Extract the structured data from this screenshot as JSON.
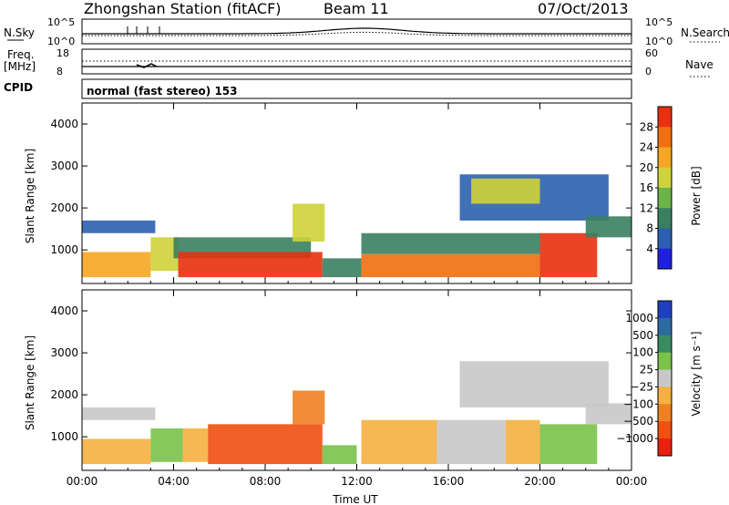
{
  "header": {
    "title": "Zhongshan Station (fitACF)",
    "beam": "Beam 11",
    "date": "07/Oct/2013"
  },
  "noise_panel": {
    "left_label": "N.Sky",
    "right_label": "N.Search",
    "left_ticks": [
      "10^5",
      "10^0"
    ],
    "right_ticks": [
      "10^5",
      "10^0"
    ]
  },
  "freq_panel": {
    "left_label_1": "Freq.",
    "left_label_2": "[MHz]",
    "right_label": "Nave",
    "left_ticks": [
      "18",
      "8"
    ],
    "right_ticks": [
      "60",
      "0"
    ]
  },
  "cpid": {
    "label": "CPID",
    "text": "normal (fast stereo) 153"
  },
  "colors": {
    "power_scale": [
      "#1f1fe0",
      "#2c5fb0",
      "#3a8060",
      "#6ab44a",
      "#cfd23a",
      "#f5a623",
      "#f07010",
      "#e83010"
    ],
    "velocity_scale": [
      "#e82010",
      "#f05010",
      "#f08020",
      "#f5b040",
      "#c8c8c8",
      "#7ac24a",
      "#3a8c60",
      "#2c6aa0",
      "#1f3fc0"
    ]
  },
  "chart_data": [
    {
      "type": "heatmap",
      "title": "Power",
      "ylabel": "Slant Range [km]",
      "xlabel": "",
      "ylim": [
        200,
        4500
      ],
      "xlim_hours": [
        0,
        24
      ],
      "yticks": [
        "1000",
        "2000",
        "3000",
        "4000"
      ],
      "xticks": [
        "00:00",
        "04:00",
        "08:00",
        "12:00",
        "16:00",
        "20:00",
        "00:00"
      ],
      "colorbar": {
        "label": "Power [dB]",
        "ticks": [
          "4",
          "8",
          "12",
          "16",
          "20",
          "24",
          "28"
        ],
        "range": [
          0,
          32
        ]
      },
      "regions": [
        {
          "t0": 0.0,
          "t1": 3.2,
          "r0": 1400,
          "r1": 1700,
          "value": 6
        },
        {
          "t0": 0.0,
          "t1": 3.0,
          "r0": 350,
          "r1": 950,
          "value": 20
        },
        {
          "t0": 3.0,
          "t1": 4.2,
          "r0": 500,
          "r1": 1300,
          "value": 18
        },
        {
          "t0": 4.0,
          "t1": 10.0,
          "r0": 800,
          "r1": 1300,
          "value": 8
        },
        {
          "t0": 4.2,
          "t1": 10.5,
          "r0": 350,
          "r1": 950,
          "value": 28
        },
        {
          "t0": 9.2,
          "t1": 10.6,
          "r0": 1200,
          "r1": 2100,
          "value": 18
        },
        {
          "t0": 10.5,
          "t1": 12.2,
          "r0": 350,
          "r1": 800,
          "value": 10
        },
        {
          "t0": 12.2,
          "t1": 20.0,
          "r0": 900,
          "r1": 1400,
          "value": 8
        },
        {
          "t0": 12.2,
          "t1": 20.0,
          "r0": 350,
          "r1": 900,
          "value": 26
        },
        {
          "t0": 16.5,
          "t1": 23.0,
          "r0": 1700,
          "r1": 2800,
          "value": 6
        },
        {
          "t0": 17.0,
          "t1": 20.0,
          "r0": 2100,
          "r1": 2700,
          "value": 16
        },
        {
          "t0": 20.0,
          "t1": 22.5,
          "r0": 350,
          "r1": 1400,
          "value": 30
        },
        {
          "t0": 22.0,
          "t1": 24.0,
          "r0": 1300,
          "r1": 1800,
          "value": 10
        }
      ]
    },
    {
      "type": "heatmap",
      "title": "Velocity",
      "ylabel": "Slant Range [km]",
      "xlabel": "Time UT",
      "ylim": [
        200,
        4500
      ],
      "xlim_hours": [
        0,
        24
      ],
      "yticks": [
        "1000",
        "2000",
        "3000",
        "4000"
      ],
      "xticks": [
        "00:00",
        "04:00",
        "08:00",
        "12:00",
        "16:00",
        "20:00",
        "00:00"
      ],
      "colorbar": {
        "label": "Velocity [m s⁻¹]",
        "ticks": [
          "1000",
          "500",
          "100",
          "25",
          "−25",
          "−100",
          "−500",
          "−1000"
        ],
        "range": [
          -1000,
          1000
        ]
      },
      "regions": [
        {
          "t0": 0.0,
          "t1": 3.2,
          "r0": 1400,
          "r1": 1700,
          "value": 0
        },
        {
          "t0": 0.0,
          "t1": 3.0,
          "r0": 350,
          "r1": 950,
          "value": -150
        },
        {
          "t0": 3.0,
          "t1": 4.4,
          "r0": 400,
          "r1": 1200,
          "value": 300
        },
        {
          "t0": 4.4,
          "t1": 5.5,
          "r0": 400,
          "r1": 1200,
          "value": -200
        },
        {
          "t0": 5.5,
          "t1": 10.5,
          "r0": 350,
          "r1": 1300,
          "value": -600
        },
        {
          "t0": 9.2,
          "t1": 10.6,
          "r0": 1300,
          "r1": 2100,
          "value": -500
        },
        {
          "t0": 10.5,
          "t1": 12.0,
          "r0": 350,
          "r1": 800,
          "value": 300
        },
        {
          "t0": 12.2,
          "t1": 15.5,
          "r0": 350,
          "r1": 1400,
          "value": -200
        },
        {
          "t0": 15.5,
          "t1": 18.5,
          "r0": 350,
          "r1": 1400,
          "value": 80
        },
        {
          "t0": 18.5,
          "t1": 20.0,
          "r0": 350,
          "r1": 1400,
          "value": -150
        },
        {
          "t0": 16.5,
          "t1": 23.0,
          "r0": 1700,
          "r1": 2800,
          "value": 0
        },
        {
          "t0": 20.0,
          "t1": 22.5,
          "r0": 350,
          "r1": 1300,
          "value": 300
        },
        {
          "t0": 22.0,
          "t1": 24.0,
          "r0": 1300,
          "r1": 1800,
          "value": 0
        }
      ]
    }
  ]
}
